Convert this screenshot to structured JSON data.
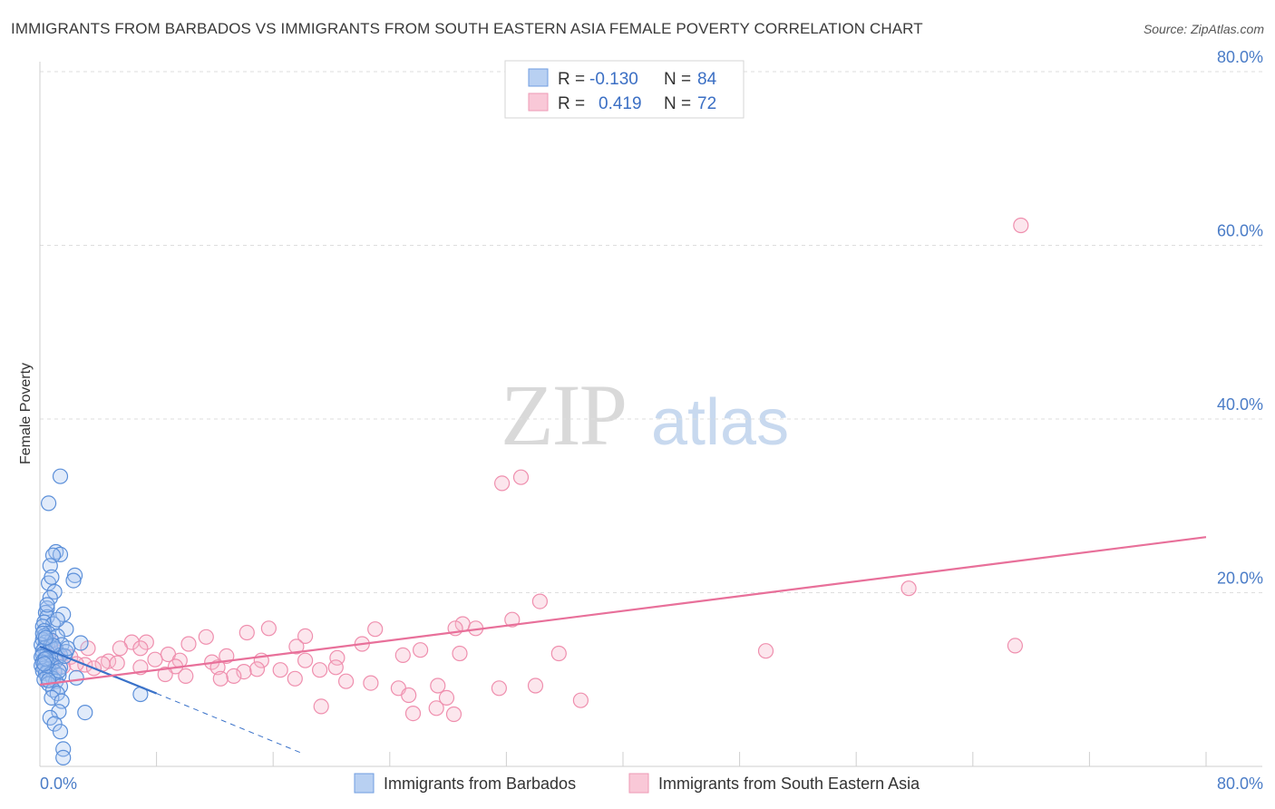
{
  "title": "IMMIGRANTS FROM BARBADOS VS IMMIGRANTS FROM SOUTH EASTERN ASIA FEMALE POVERTY CORRELATION CHART",
  "source": "Source: ZipAtlas.com",
  "watermark": {
    "zip": "ZIP",
    "atlas": "atlas"
  },
  "legend": {
    "r_label": "R =",
    "n_label": "N =",
    "rows": [
      {
        "r": "-0.130",
        "n": "84"
      },
      {
        "r": "0.419",
        "n": "72"
      }
    ]
  },
  "chart_data": {
    "type": "scatter",
    "xlabel": "",
    "ylabel": "Female Poverty",
    "xlim": [
      0,
      80
    ],
    "ylim": [
      0,
      80
    ],
    "x_tick_labels": [
      "0.0%",
      "80.0%"
    ],
    "y_tick_labels": [
      "20.0%",
      "40.0%",
      "60.0%",
      "80.0%"
    ],
    "y_ticks": [
      20,
      40,
      60,
      80
    ],
    "colors": {
      "barbados": "#5b8fd9",
      "sea": "#ef8fae",
      "barbados_line": "#3a72c9",
      "sea_line": "#e8709a"
    },
    "series": [
      {
        "name": "Immigrants from Barbados",
        "r": -0.13,
        "n": 84,
        "trend": {
          "x0": 0,
          "y0": 13.8,
          "x1": 8,
          "y1": 8.4,
          "dash_x1": 18,
          "dash_y1": 1.5
        },
        "points": [
          [
            1.4,
            33.4
          ],
          [
            0.6,
            30.3
          ],
          [
            1.1,
            24.7
          ],
          [
            1.4,
            24.4
          ],
          [
            0.9,
            24.3
          ],
          [
            0.7,
            23.1
          ],
          [
            2.4,
            22.0
          ],
          [
            2.3,
            21.4
          ],
          [
            0.6,
            21.1
          ],
          [
            1.0,
            20.1
          ],
          [
            0.7,
            19.4
          ],
          [
            0.5,
            18.2
          ],
          [
            0.4,
            17.7
          ],
          [
            0.5,
            17.2
          ],
          [
            1.6,
            17.5
          ],
          [
            0.3,
            16.6
          ],
          [
            0.9,
            16.4
          ],
          [
            0.2,
            16.1
          ],
          [
            1.8,
            15.8
          ],
          [
            0.3,
            15.6
          ],
          [
            0.6,
            15.3
          ],
          [
            0.3,
            15.0
          ],
          [
            1.2,
            15.0
          ],
          [
            0.2,
            14.6
          ],
          [
            0.8,
            14.5
          ],
          [
            0.4,
            14.3
          ],
          [
            2.8,
            14.2
          ],
          [
            0.1,
            14.0
          ],
          [
            1.5,
            14.0
          ],
          [
            0.7,
            13.8
          ],
          [
            0.3,
            13.6
          ],
          [
            1.1,
            13.5
          ],
          [
            0.2,
            13.3
          ],
          [
            1.8,
            13.2
          ],
          [
            0.5,
            13.1
          ],
          [
            0.2,
            12.9
          ],
          [
            1.4,
            12.8
          ],
          [
            0.1,
            12.6
          ],
          [
            0.6,
            12.5
          ],
          [
            0.3,
            12.3
          ],
          [
            1.1,
            12.2
          ],
          [
            0.2,
            12.0
          ],
          [
            0.5,
            11.9
          ],
          [
            0.8,
            11.7
          ],
          [
            0.1,
            11.6
          ],
          [
            1.4,
            11.4
          ],
          [
            0.3,
            11.3
          ],
          [
            0.6,
            11.2
          ],
          [
            0.2,
            11.0
          ],
          [
            1.0,
            10.9
          ],
          [
            0.4,
            10.7
          ],
          [
            0.7,
            10.6
          ],
          [
            1.3,
            10.5
          ],
          [
            0.5,
            10.3
          ],
          [
            2.5,
            10.2
          ],
          [
            0.9,
            10.1
          ],
          [
            0.3,
            10.0
          ],
          [
            1.1,
            9.8
          ],
          [
            0.6,
            9.5
          ],
          [
            1.4,
            9.2
          ],
          [
            0.9,
            8.8
          ],
          [
            1.2,
            8.4
          ],
          [
            0.8,
            7.9
          ],
          [
            6.9,
            8.3
          ],
          [
            1.5,
            7.5
          ],
          [
            3.1,
            6.2
          ],
          [
            1.3,
            6.3
          ],
          [
            0.7,
            5.6
          ],
          [
            1.0,
            4.9
          ],
          [
            1.4,
            4.0
          ],
          [
            1.6,
            2.0
          ],
          [
            1.6,
            1.0
          ],
          [
            0.4,
            12.4
          ],
          [
            0.9,
            13.9
          ],
          [
            1.7,
            12.7
          ],
          [
            0.2,
            15.3
          ],
          [
            1.2,
            16.9
          ],
          [
            0.5,
            18.6
          ],
          [
            0.8,
            21.8
          ],
          [
            0.3,
            11.8
          ],
          [
            1.9,
            13.6
          ],
          [
            0.4,
            14.8
          ],
          [
            1.3,
            11.0
          ],
          [
            0.6,
            9.9
          ]
        ]
      },
      {
        "name": "Immigrants from South Eastern Asia",
        "r": 0.419,
        "n": 72,
        "trend": {
          "x0": 0,
          "y0": 9.4,
          "x1": 80,
          "y1": 26.4
        },
        "points": [
          [
            67.3,
            62.3
          ],
          [
            33.0,
            33.3
          ],
          [
            31.7,
            32.6
          ],
          [
            59.6,
            20.5
          ],
          [
            34.3,
            19.0
          ],
          [
            32.4,
            16.9
          ],
          [
            29.0,
            16.4
          ],
          [
            29.9,
            15.9
          ],
          [
            28.5,
            15.9
          ],
          [
            23.0,
            15.8
          ],
          [
            15.7,
            15.9
          ],
          [
            14.2,
            15.4
          ],
          [
            18.2,
            15.0
          ],
          [
            11.4,
            14.9
          ],
          [
            6.3,
            14.3
          ],
          [
            7.3,
            14.3
          ],
          [
            22.1,
            14.1
          ],
          [
            10.2,
            14.1
          ],
          [
            17.6,
            13.8
          ],
          [
            5.5,
            13.6
          ],
          [
            6.9,
            13.6
          ],
          [
            26.1,
            13.4
          ],
          [
            3.3,
            13.6
          ],
          [
            49.8,
            13.3
          ],
          [
            66.9,
            13.9
          ],
          [
            28.8,
            13.0
          ],
          [
            24.9,
            12.8
          ],
          [
            35.6,
            13.0
          ],
          [
            12.8,
            12.7
          ],
          [
            15.2,
            12.2
          ],
          [
            20.4,
            12.5
          ],
          [
            18.2,
            12.2
          ],
          [
            8.8,
            12.9
          ],
          [
            7.9,
            12.3
          ],
          [
            4.7,
            12.1
          ],
          [
            5.3,
            11.9
          ],
          [
            9.6,
            12.2
          ],
          [
            11.8,
            12.0
          ],
          [
            4.3,
            11.8
          ],
          [
            3.1,
            11.7
          ],
          [
            1.6,
            11.5
          ],
          [
            12.2,
            11.4
          ],
          [
            6.9,
            11.4
          ],
          [
            9.3,
            11.5
          ],
          [
            14.9,
            11.2
          ],
          [
            20.3,
            11.4
          ],
          [
            16.5,
            11.1
          ],
          [
            14.0,
            10.9
          ],
          [
            19.2,
            11.1
          ],
          [
            8.6,
            10.6
          ],
          [
            13.3,
            10.4
          ],
          [
            17.5,
            10.1
          ],
          [
            21.0,
            9.8
          ],
          [
            3.7,
            11.3
          ],
          [
            10.0,
            10.4
          ],
          [
            12.4,
            10.1
          ],
          [
            22.7,
            9.6
          ],
          [
            27.3,
            9.3
          ],
          [
            24.6,
            9.0
          ],
          [
            34.0,
            9.3
          ],
          [
            31.5,
            9.0
          ],
          [
            25.3,
            8.2
          ],
          [
            27.9,
            7.9
          ],
          [
            2.1,
            12.6
          ],
          [
            1.2,
            13.1
          ],
          [
            0.8,
            14.4
          ],
          [
            37.1,
            7.6
          ],
          [
            19.3,
            6.9
          ],
          [
            27.2,
            6.7
          ],
          [
            25.6,
            6.1
          ],
          [
            28.4,
            6.0
          ],
          [
            2.5,
            11.8
          ]
        ]
      }
    ]
  },
  "bottom_legend": [
    {
      "label": "Immigrants from Barbados"
    },
    {
      "label": "Immigrants from South Eastern Asia"
    }
  ]
}
